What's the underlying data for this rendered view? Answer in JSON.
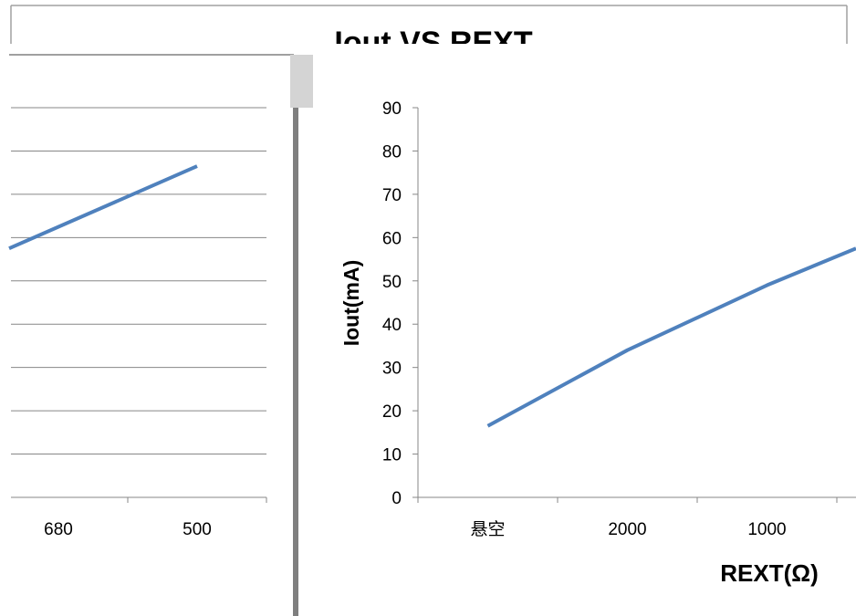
{
  "chart_data": [
    {
      "type": "line",
      "title": "",
      "xlabel": "",
      "ylabel": "",
      "categories": [
        "680",
        "500"
      ],
      "series": [
        {
          "values": [
            57.5,
            76.5
          ]
        }
      ],
      "ylim": [
        0,
        90
      ],
      "grid": true,
      "line_color": "#4F81BD",
      "clipped": "left portion of the window is cut off at the left page edge"
    },
    {
      "type": "line",
      "title": "Iout VS REXT",
      "xlabel": "REXT(Ω)",
      "ylabel": "Iout(mA)",
      "categories": [
        "悬空",
        "2000",
        "1000"
      ],
      "y_ticks": [
        "0",
        "10",
        "20",
        "30",
        "40",
        "50",
        "60",
        "70",
        "80",
        "90"
      ],
      "series": [
        {
          "values": [
            16.5,
            34,
            49
          ]
        }
      ],
      "continuation_value": 57.5,
      "ylim": [
        0,
        90
      ],
      "grid": false,
      "line_color": "#4F81BD"
    }
  ],
  "colors": {
    "line": "#4F81BD",
    "gridline": "#878787",
    "axis": "#878787",
    "separator": "#7F7F7F",
    "frame": "#A0A0A0",
    "scroll_thumb": "#D4D4D4"
  }
}
